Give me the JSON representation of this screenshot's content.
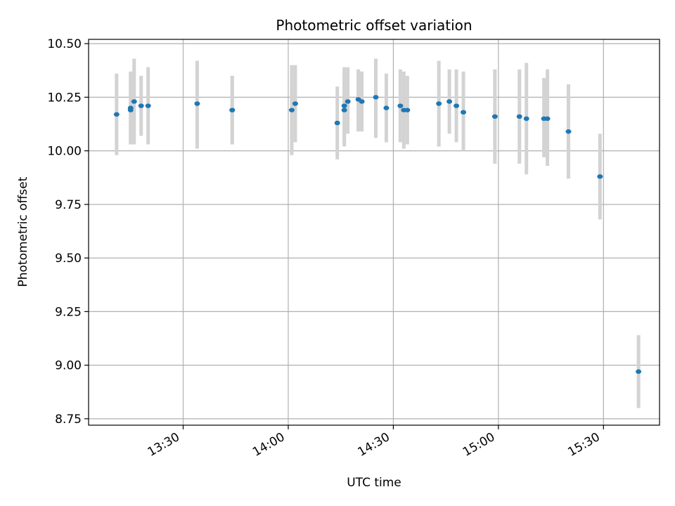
{
  "chart_data": {
    "type": "scatter",
    "title": "Photometric offset variation",
    "xlabel": "UTC time",
    "ylabel": "Photometric offset",
    "x_ticks": [
      "13:30",
      "14:00",
      "14:30",
      "15:00",
      "15:30"
    ],
    "x_tick_minutes": [
      810,
      840,
      870,
      900,
      930
    ],
    "xlim": [
      "13:03",
      "15:46"
    ],
    "ylim": [
      8.72,
      10.52
    ],
    "y_ticks": [
      8.75,
      9.0,
      9.25,
      9.5,
      9.75,
      10.0,
      10.25,
      10.5
    ],
    "y_tick_labels": [
      "8.75",
      "9.00",
      "9.25",
      "9.50",
      "9.75",
      "10.00",
      "10.25",
      "10.50"
    ],
    "grid": true,
    "colors": {
      "marker": "#1f77b4",
      "errorbar": "#d3d3d3",
      "grid": "#b0b0b0"
    },
    "points": [
      {
        "t": "13:11",
        "y": 10.17,
        "lo": 9.98,
        "hi": 10.36
      },
      {
        "t": "13:15",
        "y": 10.2,
        "lo": 10.03,
        "hi": 10.37
      },
      {
        "t": "13:15",
        "y": 10.19,
        "lo": 10.03,
        "hi": 10.36
      },
      {
        "t": "13:16",
        "y": 10.23,
        "lo": 10.03,
        "hi": 10.43
      },
      {
        "t": "13:18",
        "y": 10.21,
        "lo": 10.07,
        "hi": 10.35
      },
      {
        "t": "13:20",
        "y": 10.21,
        "lo": 10.03,
        "hi": 10.39
      },
      {
        "t": "13:34",
        "y": 10.22,
        "lo": 10.01,
        "hi": 10.42
      },
      {
        "t": "13:44",
        "y": 10.19,
        "lo": 10.03,
        "hi": 10.35
      },
      {
        "t": "13:44",
        "y": 10.19,
        "lo": 10.03,
        "hi": 10.35
      },
      {
        "t": "14:01",
        "y": 10.19,
        "lo": 9.98,
        "hi": 10.4
      },
      {
        "t": "14:02",
        "y": 10.22,
        "lo": 10.04,
        "hi": 10.4
      },
      {
        "t": "14:14",
        "y": 10.13,
        "lo": 9.96,
        "hi": 10.3
      },
      {
        "t": "14:16",
        "y": 10.21,
        "lo": 10.03,
        "hi": 10.39
      },
      {
        "t": "14:16",
        "y": 10.19,
        "lo": 10.02,
        "hi": 10.37
      },
      {
        "t": "14:17",
        "y": 10.23,
        "lo": 10.08,
        "hi": 10.39
      },
      {
        "t": "14:20",
        "y": 10.24,
        "lo": 10.09,
        "hi": 10.38
      },
      {
        "t": "14:21",
        "y": 10.23,
        "lo": 10.09,
        "hi": 10.37
      },
      {
        "t": "14:25",
        "y": 10.25,
        "lo": 10.06,
        "hi": 10.43
      },
      {
        "t": "14:28",
        "y": 10.2,
        "lo": 10.04,
        "hi": 10.36
      },
      {
        "t": "14:32",
        "y": 10.21,
        "lo": 10.04,
        "hi": 10.38
      },
      {
        "t": "14:33",
        "y": 10.19,
        "lo": 10.01,
        "hi": 10.37
      },
      {
        "t": "14:34",
        "y": 10.19,
        "lo": 10.03,
        "hi": 10.35
      },
      {
        "t": "14:43",
        "y": 10.22,
        "lo": 10.02,
        "hi": 10.42
      },
      {
        "t": "14:46",
        "y": 10.23,
        "lo": 10.08,
        "hi": 10.38
      },
      {
        "t": "14:48",
        "y": 10.21,
        "lo": 10.04,
        "hi": 10.38
      },
      {
        "t": "14:50",
        "y": 10.18,
        "lo": 10.0,
        "hi": 10.37
      },
      {
        "t": "14:59",
        "y": 10.16,
        "lo": 9.94,
        "hi": 10.38
      },
      {
        "t": "15:06",
        "y": 10.16,
        "lo": 9.94,
        "hi": 10.38
      },
      {
        "t": "15:08",
        "y": 10.15,
        "lo": 9.89,
        "hi": 10.41
      },
      {
        "t": "15:13",
        "y": 10.15,
        "lo": 9.97,
        "hi": 10.34
      },
      {
        "t": "15:14",
        "y": 10.15,
        "lo": 9.93,
        "hi": 10.38
      },
      {
        "t": "15:20",
        "y": 10.09,
        "lo": 9.87,
        "hi": 10.31
      },
      {
        "t": "15:29",
        "y": 9.88,
        "lo": 9.68,
        "hi": 10.08
      },
      {
        "t": "15:40",
        "y": 8.97,
        "lo": 8.8,
        "hi": 9.14
      }
    ]
  }
}
